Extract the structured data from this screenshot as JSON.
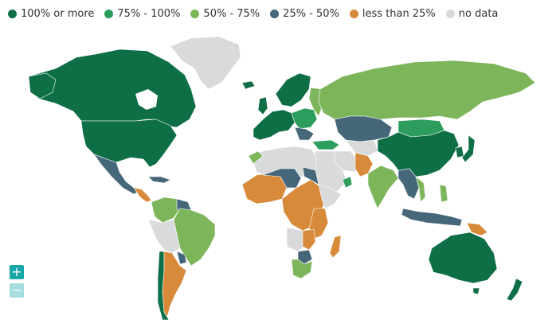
{
  "legend": [
    {
      "label": "100% or more",
      "color": "#0e6e46"
    },
    {
      "label": "75% - 100%",
      "color": "#2c9d5c"
    },
    {
      "label": "50% - 75%",
      "color": "#7db55b"
    },
    {
      "label": "25% - 50%",
      "color": "#456779"
    },
    {
      "label": "less than 25%",
      "color": "#d88a3b"
    },
    {
      "label": "no data",
      "color": "#d8dadc"
    }
  ],
  "zoom": {
    "in_label": "+",
    "out_label": "−"
  },
  "colors": {
    "border": "#ffffff",
    "background": "#ffffff"
  }
}
